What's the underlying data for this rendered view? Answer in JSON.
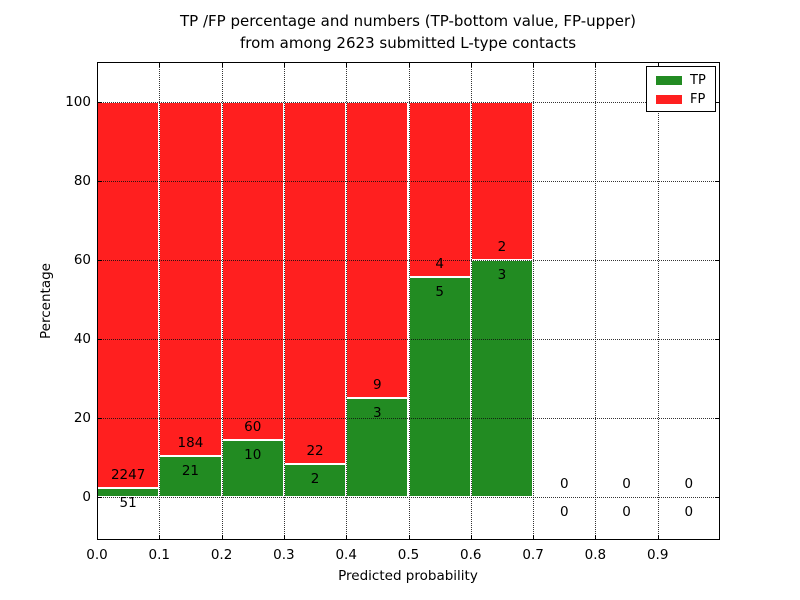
{
  "chart_data": {
    "type": "bar",
    "stacked": true,
    "title_line1": "TP /FP percentage and numbers (TP-bottom value, FP-upper)",
    "title_line2": "from among 2623 submitted L-type contacts",
    "xlabel": "Predicted probability",
    "ylabel": "Percentage",
    "total_submitted_contacts": 2623,
    "xlim": [
      0.0,
      1.0
    ],
    "ylim": [
      -11,
      110
    ],
    "xticks": [
      0.0,
      0.1,
      0.2,
      0.3,
      0.4,
      0.5,
      0.6,
      0.7,
      0.8,
      0.9
    ],
    "xtick_labels": [
      "0.0",
      "0.1",
      "0.2",
      "0.3",
      "0.4",
      "0.5",
      "0.6",
      "0.7",
      "0.8",
      "0.9"
    ],
    "yticks": [
      0,
      20,
      40,
      60,
      80,
      100
    ],
    "ytick_labels": [
      "0",
      "20",
      "40",
      "60",
      "80",
      "100"
    ],
    "grid": true,
    "grid_style": "dotted",
    "annotation_rule": "FP count printed above the TP/FP boundary, TP count printed below it",
    "legend": {
      "position": "upper-right",
      "entries": [
        {
          "label": "TP",
          "color": "#228B22"
        },
        {
          "label": "FP",
          "color": "#FF1F1F"
        }
      ]
    },
    "bins": [
      {
        "x_range": [
          0.0,
          0.1
        ],
        "tp_count": 51,
        "fp_count": 2247,
        "tp_pct": 2.2,
        "fp_pct": 97.8
      },
      {
        "x_range": [
          0.1,
          0.2
        ],
        "tp_count": 21,
        "fp_count": 184,
        "tp_pct": 10.2,
        "fp_pct": 89.8
      },
      {
        "x_range": [
          0.2,
          0.3
        ],
        "tp_count": 10,
        "fp_count": 60,
        "tp_pct": 14.3,
        "fp_pct": 85.7
      },
      {
        "x_range": [
          0.3,
          0.4
        ],
        "tp_count": 2,
        "fp_count": 22,
        "tp_pct": 8.3,
        "fp_pct": 91.7
      },
      {
        "x_range": [
          0.4,
          0.5
        ],
        "tp_count": 3,
        "fp_count": 9,
        "tp_pct": 25.0,
        "fp_pct": 75.0
      },
      {
        "x_range": [
          0.5,
          0.6
        ],
        "tp_count": 5,
        "fp_count": 4,
        "tp_pct": 55.6,
        "fp_pct": 44.4
      },
      {
        "x_range": [
          0.6,
          0.7
        ],
        "tp_count": 3,
        "fp_count": 2,
        "tp_pct": 60.0,
        "fp_pct": 40.0
      },
      {
        "x_range": [
          0.7,
          0.8
        ],
        "tp_count": 0,
        "fp_count": 0,
        "tp_pct": 0,
        "fp_pct": 0
      },
      {
        "x_range": [
          0.8,
          0.9
        ],
        "tp_count": 0,
        "fp_count": 0,
        "tp_pct": 0,
        "fp_pct": 0
      },
      {
        "x_range": [
          0.9,
          1.0
        ],
        "tp_count": 0,
        "fp_count": 0,
        "tp_pct": 0,
        "fp_pct": 0
      }
    ],
    "colors": {
      "tp": "#228B22",
      "fp": "#FF1F1F",
      "bar_edge": "#FFFFFF",
      "grid": "#111111",
      "text": "#000000",
      "background": "#FFFFFF"
    }
  }
}
